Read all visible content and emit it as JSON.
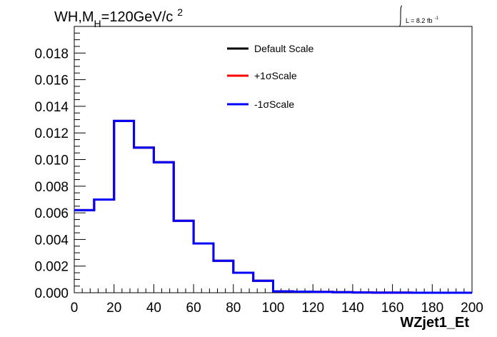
{
  "title": {
    "main": "WH,M",
    "sub": "H",
    "rest": "=120GeV/c",
    "sup": "2"
  },
  "lumi": {
    "prefix": "L = 8.2 fb",
    "sup": "-1"
  },
  "chart_data": {
    "type": "line",
    "xlabel": "WZjet1_Et",
    "ylabel": "",
    "xlim": [
      0,
      200
    ],
    "ylim": [
      0,
      0.02
    ],
    "x_ticks": [
      "0",
      "20",
      "40",
      "60",
      "80",
      "100",
      "120",
      "140",
      "160",
      "180",
      "200"
    ],
    "y_ticks": [
      "0.000",
      "0.002",
      "0.004",
      "0.006",
      "0.008",
      "0.010",
      "0.012",
      "0.014",
      "0.016",
      "0.018"
    ],
    "bin_edges": [
      0,
      10,
      20,
      30,
      40,
      50,
      60,
      70,
      80,
      90,
      100,
      110,
      120,
      130,
      140,
      150,
      160,
      170,
      180,
      190,
      200
    ],
    "series": [
      {
        "name": "Default Scale",
        "color": "#000000",
        "values": [
          0.0062,
          0.007,
          0.0129,
          0.0109,
          0.0098,
          0.0054,
          0.0037,
          0.0024,
          0.0015,
          0.0009,
          0.0001,
          8e-05,
          6e-05,
          4e-05,
          2e-05,
          1e-05,
          1e-05,
          0.0,
          0.0,
          0.0
        ]
      },
      {
        "name": "+1σScale",
        "color": "#ff0000",
        "values": [
          0.0062,
          0.007,
          0.0129,
          0.0109,
          0.0098,
          0.0054,
          0.0037,
          0.0024,
          0.0015,
          0.0009,
          0.0001,
          8e-05,
          6e-05,
          4e-05,
          2e-05,
          1e-05,
          1e-05,
          0.0,
          0.0,
          0.0
        ]
      },
      {
        "name": "-1σScale",
        "color": "#0000ff",
        "values": [
          0.0062,
          0.007,
          0.0129,
          0.0109,
          0.0098,
          0.0054,
          0.0037,
          0.0024,
          0.0015,
          0.0009,
          0.0001,
          8e-05,
          6e-05,
          4e-05,
          2e-05,
          1e-05,
          1e-05,
          0.0,
          0.0,
          0.0
        ]
      }
    ],
    "legend_position": "top-right",
    "grid": false
  }
}
